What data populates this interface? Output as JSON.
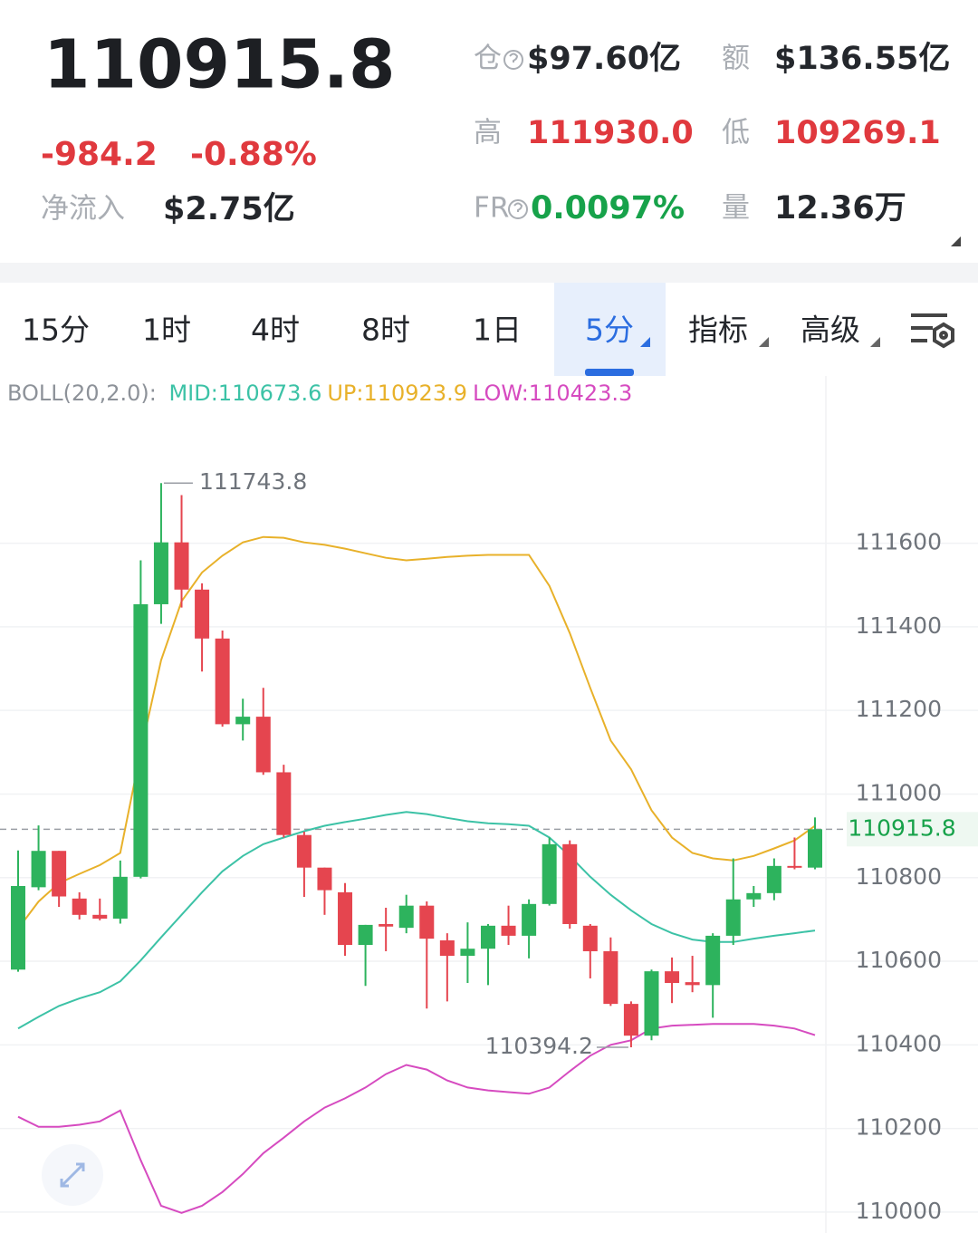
{
  "header": {
    "price": "110915.8",
    "change": "-984.2",
    "change_pct": "-0.88%",
    "net_inflow_label": "净流入",
    "net_inflow": "$2.75亿",
    "stats": [
      {
        "label": "仓",
        "value": "$97.60亿"
      },
      {
        "label": "额",
        "value": "$136.55亿"
      },
      {
        "label": "高",
        "value": "111930.0"
      },
      {
        "label": "低",
        "value": "109269.1"
      },
      {
        "label": "FR",
        "value": "0.0097%"
      },
      {
        "label": "量",
        "value": "12.36万"
      }
    ]
  },
  "tabs": [
    "15分",
    "1时",
    "4时",
    "8时",
    "1日",
    "5分",
    "指标",
    "高级"
  ],
  "active_tab": 5,
  "chart_data": {
    "type": "candlestick",
    "indicator": "BOLL(20,2.0):",
    "ylim": [
      109950,
      112000
    ],
    "yticks": [
      110000,
      110200,
      110400,
      110600,
      110800,
      111000,
      111200,
      111400,
      111600
    ],
    "grid": true,
    "up_color": "#2db35d",
    "down_color": "#e5454f",
    "candles": {
      "open": [
        110580,
        110777,
        110864,
        110750,
        110711,
        110702,
        110802,
        111454,
        111602,
        111489,
        111372,
        111167,
        111185,
        111052,
        110902,
        110824,
        110765,
        110639,
        110689,
        110680,
        110733,
        110650,
        110613,
        110630,
        110685,
        110661,
        110737,
        110880,
        110685,
        110624,
        110498,
        110422,
        110576,
        110550,
        110543,
        110661,
        110748,
        110763,
        110828,
        110824
      ],
      "high": [
        110865,
        110925,
        110864,
        110765,
        110750,
        110841,
        111559,
        111743.8,
        111715,
        111504,
        111391,
        111228,
        111254,
        111070,
        110910,
        110824,
        110787,
        110687,
        110728,
        110759,
        110743,
        110667,
        110693,
        110689,
        110733,
        110748,
        110896,
        110889,
        110689,
        110657,
        110504,
        110580,
        110609,
        110613,
        110667,
        110846,
        110780,
        110846,
        110896,
        110944
      ],
      "low": [
        110575,
        110770,
        110730,
        110700,
        110698,
        110690,
        110798,
        111407,
        111446,
        111293,
        111161,
        111128,
        111046,
        110896,
        110754,
        110711,
        110613,
        110541,
        110624,
        110667,
        110487,
        110504,
        110548,
        110543,
        110639,
        110607,
        110733,
        110678,
        110559,
        110493,
        110394.2,
        110411,
        110500,
        110526,
        110465,
        110639,
        110730,
        110746,
        110820,
        110820
      ],
      "close": [
        110780,
        110864,
        110755,
        110711,
        110702,
        110802,
        111454,
        111602,
        111489,
        111372,
        111167,
        111185,
        111052,
        110902,
        110824,
        110770,
        110639,
        110687,
        110683,
        110733,
        110654,
        110613,
        110630,
        110685,
        110661,
        110737,
        110880,
        110689,
        110624,
        110498,
        110422,
        110576,
        110548,
        110543,
        110661,
        110748,
        110763,
        110828,
        110824,
        110915.8
      ]
    },
    "series": [
      {
        "name": "MID:110673.6",
        "color": "#3cc2a6",
        "values": [
          110439,
          110467,
          110493,
          110511,
          110526,
          110552,
          110602,
          110657,
          110711,
          110765,
          110815,
          110852,
          110880,
          110896,
          110911,
          110924,
          110933,
          110941,
          110950,
          110957,
          110952,
          110943,
          110935,
          110930,
          110928,
          110924,
          110896,
          110852,
          110802,
          110759,
          110722,
          110689,
          110667,
          110652,
          110646,
          110646,
          110654,
          110661,
          110667,
          110673.6
        ]
      },
      {
        "name": "UP:110923.9",
        "color": "#e8b12a",
        "values": [
          110678,
          110743,
          110787,
          110809,
          110830,
          110859,
          111102,
          111320,
          111461,
          111530,
          111570,
          111602,
          111615,
          111613,
          111602,
          111596,
          111587,
          111576,
          111565,
          111559,
          111563,
          111567,
          111570,
          111572,
          111572,
          111572,
          111498,
          111385,
          111254,
          111128,
          111059,
          110961,
          110896,
          110859,
          110846,
          110841,
          110852,
          110870,
          110889,
          110923.9
        ]
      },
      {
        "name": "LOW:110423.3",
        "color": "#d64bc0",
        "values": [
          110228,
          110204,
          110204,
          110209,
          110217,
          110243,
          110124,
          110015,
          109998,
          110015,
          110048,
          110091,
          110141,
          110178,
          110217,
          110250,
          110272,
          110298,
          110330,
          110352,
          110341,
          110315,
          110298,
          110291,
          110287,
          110283,
          110298,
          110337,
          110374,
          110400,
          110411,
          110439,
          110446,
          110448,
          110450,
          110450,
          110450,
          110446,
          110439,
          110423.3
        ]
      }
    ],
    "max_label": 111743.8,
    "min_label": 110394.2,
    "last_price": 110915.8
  }
}
